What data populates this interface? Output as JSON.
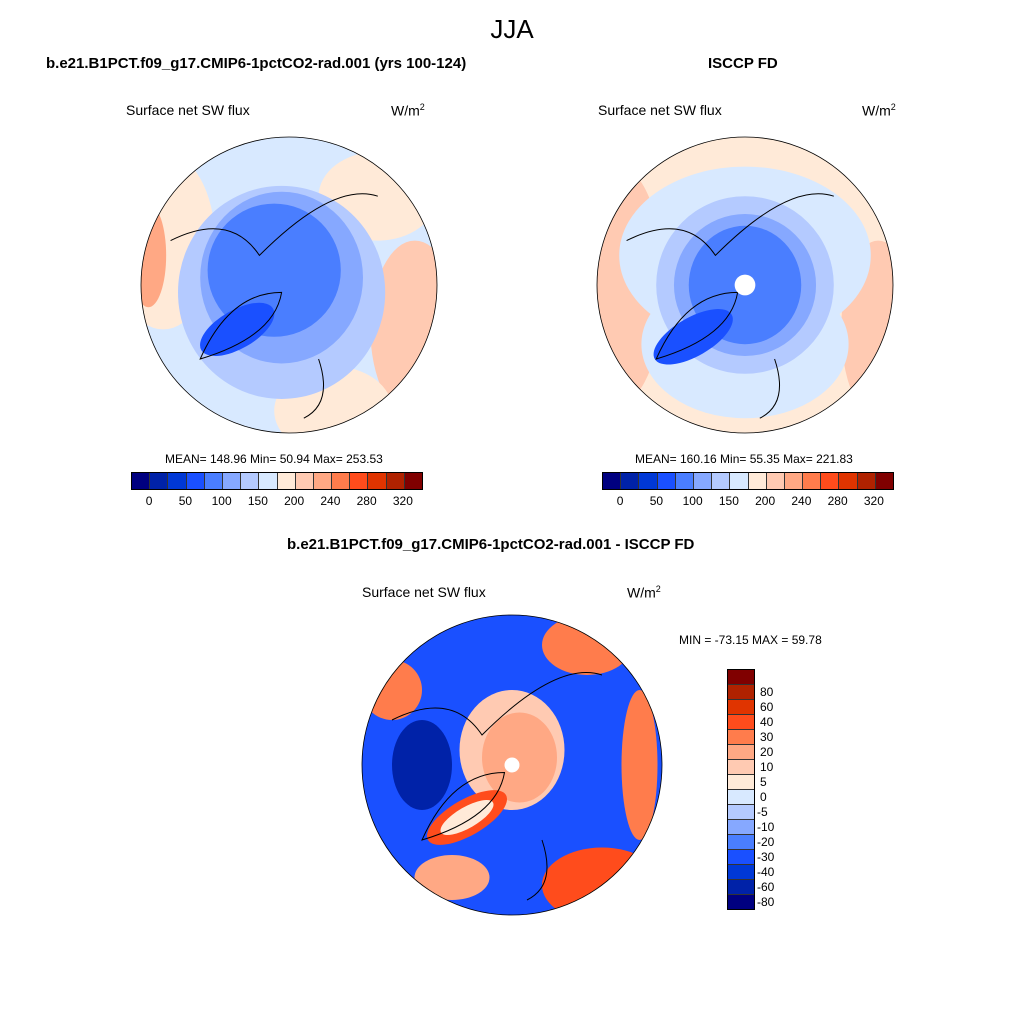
{
  "title": "JJA",
  "panels": [
    {
      "title": "b.e21.B1PCT.f09_g17.CMIP6-1pctCO2-rad.001 (yrs 100-124)",
      "variable": "Surface net SW flux",
      "units": "W/m",
      "units_exp": "2",
      "stats": "MEAN= 148.96  Min=  50.94  Max= 253.53"
    },
    {
      "title": "ISCCP FD",
      "variable": "Surface net SW flux",
      "units": "W/m",
      "units_exp": "2",
      "stats": "MEAN= 160.16  Min=  55.35  Max= 221.83"
    },
    {
      "title": "b.e21.B1PCT.f09_g17.CMIP6-1pctCO2-rad.001 - ISCCP FD",
      "variable": "Surface net SW flux",
      "units": "W/m",
      "units_exp": "2",
      "stats": "MIN = -73.15 MAX =  59.78"
    }
  ],
  "colorbar_abs": {
    "labels": [
      "0",
      "50",
      "100",
      "150",
      "200",
      "240",
      "280",
      "320"
    ]
  },
  "colorbar_diff": {
    "labels": [
      "80",
      "60",
      "40",
      "30",
      "20",
      "10",
      "5",
      "0",
      "-5",
      "-10",
      "-20",
      "-30",
      "-40",
      "-60",
      "-80"
    ]
  },
  "colors": [
    "#000080",
    "#0022a8",
    "#0038d6",
    "#1a50ff",
    "#4a7eff",
    "#86a8ff",
    "#b4caff",
    "#d8e9ff",
    "#ffead8",
    "#ffcab2",
    "#ffa884",
    "#ff7c4c",
    "#ff4c1c",
    "#e03400",
    "#b02200",
    "#800000"
  ]
}
